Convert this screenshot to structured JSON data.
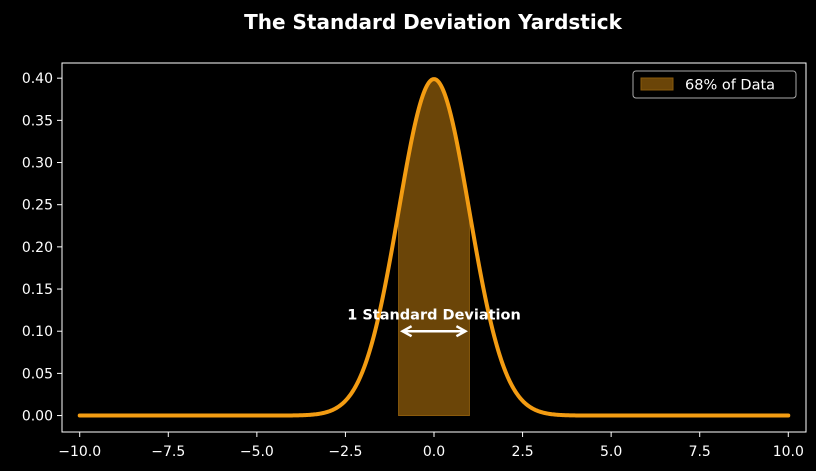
{
  "chart_data": {
    "type": "area",
    "title": "The Standard Deviation Yardstick",
    "xlabel": "",
    "ylabel": "",
    "xlim": [
      -10.5,
      10.5
    ],
    "ylim": [
      -0.0195,
      0.418
    ],
    "x_ticks": [
      -10,
      -7.5,
      -5,
      -2.5,
      0,
      2.5,
      5,
      7.5,
      10
    ],
    "x_tick_labels": [
      "−10.0",
      "−7.5",
      "−5.0",
      "−2.5",
      "0.0",
      "2.5",
      "5.0",
      "7.5",
      "10.0"
    ],
    "y_ticks": [
      0,
      0.05,
      0.1,
      0.15,
      0.2,
      0.25,
      0.3,
      0.35,
      0.4
    ],
    "y_tick_labels": [
      "0.00",
      "0.05",
      "0.10",
      "0.15",
      "0.20",
      "0.25",
      "0.30",
      "0.35",
      "0.40"
    ],
    "grid": false,
    "series": [
      {
        "kind": "line",
        "distribution": "normal",
        "mean": 0,
        "std": 1,
        "x_range": [
          -10,
          10
        ],
        "sample_points": {
          "x": [
            -10,
            -4,
            -3,
            -2,
            -1.5,
            -1,
            -0.5,
            0,
            0.5,
            1,
            1.5,
            2,
            3,
            4,
            10
          ],
          "y": [
            0.0,
            0.0001,
            0.0044,
            0.054,
            0.1295,
            0.242,
            0.3521,
            0.3989,
            0.3521,
            0.242,
            0.1295,
            0.054,
            0.0044,
            0.0001,
            0.0
          ]
        },
        "color": "#f39c12"
      },
      {
        "kind": "shaded_area",
        "name": "68% of Data",
        "x_range": [
          -1,
          1
        ],
        "color": "#f39c12",
        "opacity": 0.4
      }
    ],
    "legend": {
      "position": "top-right",
      "entries": [
        "68% of Data"
      ]
    },
    "annotation": {
      "text": "1 Standard Deviation",
      "arrow_from_x": -1,
      "arrow_to_x": 1,
      "arrow_y": 0.1,
      "text_y": 0.12
    },
    "colors": {
      "background": "#000000",
      "axes": "#ffffff",
      "curve": "#f39c12",
      "fill": "#6b4508",
      "annotation": "#ffffff"
    }
  }
}
